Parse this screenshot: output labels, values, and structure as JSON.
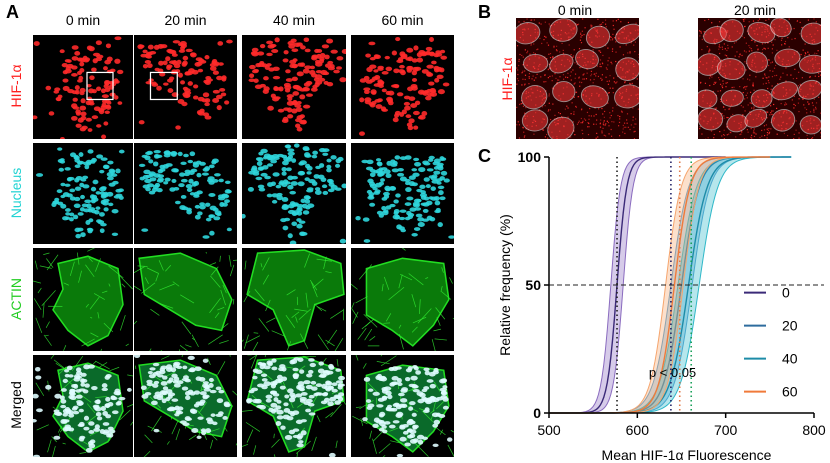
{
  "panel_a": {
    "letter": "A",
    "time_labels": [
      "0 min",
      "20 min",
      "40 min",
      "60 min"
    ],
    "row_labels": [
      {
        "text": "HIF-1α",
        "color": "#ff2020"
      },
      {
        "text": "Nucleus",
        "color": "#22d3d3"
      },
      {
        "text": "ACTIN",
        "color": "#22cc22"
      },
      {
        "text": "Merged",
        "color": "#000000"
      }
    ]
  },
  "panel_b": {
    "letter": "B",
    "time_labels": [
      "0 min",
      "20 min"
    ],
    "row_label": "HIF-1α"
  },
  "panel_c": {
    "letter": "C",
    "annotation": "p < 0.05"
  },
  "chart_data": {
    "type": "line",
    "xlabel": "Mean HIF-1α Fluorescence",
    "ylabel": "Relative frequency (%)",
    "xlim": [
      500,
      800
    ],
    "ylim": [
      0,
      100
    ],
    "xticks": [
      500,
      600,
      700,
      800
    ],
    "yticks": [
      0,
      50,
      100
    ],
    "reference_line_y": 50,
    "legend_position": "lower-right",
    "series": [
      {
        "name": "0",
        "color": "#3b2a78",
        "band_color": "#8a6bbf",
        "median": 577,
        "scale": 22,
        "band": 7,
        "x_start": 500,
        "x_end": 700
      },
      {
        "name": "20",
        "color": "#2e6c9e",
        "band_color": "#5aa0d0",
        "median": 650,
        "scale": 40,
        "band": 12,
        "x_start": 500,
        "x_end": 775
      },
      {
        "name": "40",
        "color": "#1d8ca8",
        "band_color": "#2fb8c8",
        "median": 658,
        "scale": 42,
        "band": 12,
        "x_start": 500,
        "x_end": 775
      },
      {
        "name": "60",
        "color": "#f07a3a",
        "band_color": "#f5a56e",
        "median": 642,
        "scale": 35,
        "band": 10,
        "x_start": 500,
        "x_end": 750
      }
    ],
    "median_lines": [
      {
        "x": 577,
        "color": "#222222"
      },
      {
        "x": 638,
        "color": "#222266"
      },
      {
        "x": 648,
        "color": "#e07a4a"
      },
      {
        "x": 661,
        "color": "#1aa05a"
      }
    ]
  }
}
